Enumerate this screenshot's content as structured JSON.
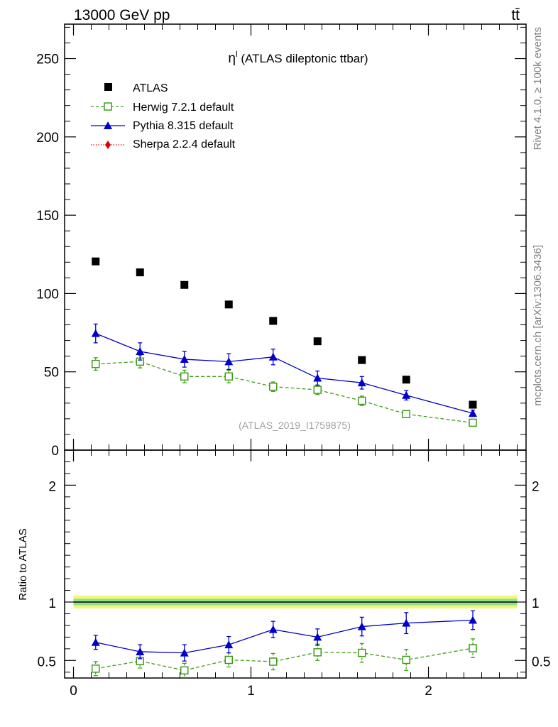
{
  "header": {
    "left": "13000 GeV pp",
    "right": "tt̄"
  },
  "side_labels": {
    "top": "Rivet 4.1.0, ≥ 100k events",
    "bottom": "mcplots.cern.ch [arXiv:1306.3436]"
  },
  "chart_data": [
    {
      "type": "scatter",
      "panel": "main",
      "title_prefix": "η",
      "title_sup": "l",
      "title_rest": " (ATLAS dileptonic ttbar)",
      "watermark": "(ATLAS_2019_I1759875)",
      "xlabel": "",
      "ylabel": "",
      "xlim": [
        -0.05,
        2.55
      ],
      "ylim": [
        0,
        272
      ],
      "yticks": [
        0,
        50,
        100,
        150,
        200,
        250
      ],
      "ytick_labels": [
        "0",
        "50",
        "100",
        "150",
        "200",
        "250"
      ],
      "x": [
        0.125,
        0.375,
        0.625,
        0.875,
        1.125,
        1.375,
        1.625,
        1.875,
        2.25
      ],
      "series": [
        {
          "name": "ATLAS",
          "marker": "square",
          "color": "#000000",
          "line": "none",
          "values": [
            120.5,
            113.5,
            105.5,
            93.0,
            82.5,
            69.5,
            57.5,
            45.0,
            29.0
          ]
        },
        {
          "name": "Herwig 7.2.1 default",
          "marker": "open-square",
          "color": "#3f9e1a",
          "line": "dashed",
          "values": [
            55,
            56.5,
            47,
            47,
            40.5,
            38.5,
            31.5,
            23,
            17.5
          ],
          "errors": [
            4,
            4,
            4,
            4,
            3,
            3,
            3,
            2,
            1
          ]
        },
        {
          "name": "Pythia 8.315 default",
          "marker": "triangle",
          "color": "#0000cc",
          "line": "solid",
          "values": [
            74.5,
            63,
            58,
            56.5,
            59.5,
            46,
            43,
            35,
            23.5
          ],
          "errors": [
            6,
            5.5,
            5,
            5,
            5,
            4.5,
            4,
            3,
            2
          ]
        },
        {
          "name": "Sherpa 2.2.4 default",
          "marker": "diamond",
          "color": "#dd0000",
          "line": "dotted",
          "values": []
        }
      ]
    },
    {
      "type": "scatter",
      "panel": "ratio",
      "ylabel": "Ratio to ATLAS",
      "xlim": [
        -0.05,
        2.55
      ],
      "ylim": [
        0.35,
        2.3
      ],
      "yticks": [
        0.5,
        1,
        2
      ],
      "ytick_labels": [
        "0.5",
        "1",
        "2"
      ],
      "xticks": [
        0,
        1,
        2
      ],
      "xtick_labels": [
        "0",
        "1",
        "2"
      ],
      "reference": 1,
      "x": [
        0.125,
        0.375,
        0.625,
        0.875,
        1.125,
        1.375,
        1.625,
        1.875,
        2.25
      ],
      "series": [
        {
          "name": "Herwig 7.2.1 default",
          "marker": "open-square",
          "color": "#3f9e1a",
          "line": "dashed",
          "values": [
            0.43,
            0.495,
            0.415,
            0.505,
            0.49,
            0.57,
            0.565,
            0.505,
            0.605
          ],
          "errors": [
            0.06,
            0.06,
            0.06,
            0.06,
            0.07,
            0.07,
            0.08,
            0.09,
            0.08
          ]
        },
        {
          "name": "Pythia 8.315 default",
          "marker": "triangle",
          "color": "#0000cc",
          "line": "solid",
          "values": [
            0.655,
            0.575,
            0.565,
            0.635,
            0.765,
            0.7,
            0.79,
            0.82,
            0.845
          ],
          "errors": [
            0.06,
            0.06,
            0.07,
            0.07,
            0.07,
            0.07,
            0.08,
            0.09,
            0.08
          ]
        }
      ]
    }
  ]
}
